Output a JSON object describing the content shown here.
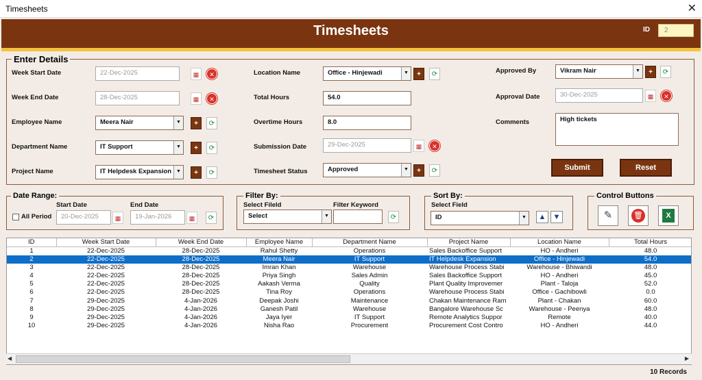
{
  "window": {
    "title": "Timesheets",
    "close": "✕"
  },
  "header": {
    "title": "Timesheets",
    "id_label": "ID",
    "id_value": "2"
  },
  "enter_details": {
    "legend": "Enter Details",
    "week_start_label": "Week Start Date",
    "week_start_value": "22-Dec-2025",
    "week_end_label": "Week End Date",
    "week_end_value": "28-Dec-2025",
    "employee_label": "Employee Name",
    "employee_value": "Meera Nair",
    "department_label": "Department Name",
    "department_value": "IT Support",
    "project_label": "Project Name",
    "project_value": "IT Helpdesk Expansion",
    "location_label": "Location Name",
    "location_value": "Office - Hinjewadi",
    "total_hours_label": "Total Hours",
    "total_hours_value": "54.0",
    "overtime_label": "Overtime Hours",
    "overtime_value": "8.0",
    "submission_label": "Submission Date",
    "submission_value": "29-Dec-2025",
    "status_label": "Timesheet Status",
    "status_value": "Approved",
    "approved_by_label": "Approved By",
    "approved_by_value": "Vikram Nair",
    "approval_date_label": "Approval Date",
    "approval_date_value": "30-Dec-2025",
    "comments_label": "Comments",
    "comments_value": "High tickets",
    "submit_label": "Submit",
    "reset_label": "Reset"
  },
  "date_range": {
    "legend": "Date Range:",
    "all_period_label": "All Period",
    "start_label": "Start Date",
    "start_value": "20-Dec-2025",
    "end_label": "End Date",
    "end_value": "19-Jan-2026"
  },
  "filter_by": {
    "legend": "Filter By:",
    "field_label": "Select Fileld",
    "field_value": "Select",
    "keyword_label": "Filter Keyword",
    "keyword_value": ""
  },
  "sort_by": {
    "legend": "Sort By:",
    "field_label": "Select Field",
    "field_value": "ID"
  },
  "control_buttons": {
    "legend": "Control Buttons"
  },
  "table": {
    "columns": [
      "ID",
      "Week Start Date",
      "Week End Date",
      "Employee Name",
      "Department Name",
      "Project Name",
      "Location Name",
      "Total Hours"
    ],
    "selected_index": 1,
    "rows": [
      [
        "1",
        "22-Dec-2025",
        "28-Dec-2025",
        "Rahul Shetty",
        "Operations",
        "Sales Backoffice Support",
        "HO - Andheri",
        "48.0"
      ],
      [
        "2",
        "22-Dec-2025",
        "28-Dec-2025",
        "Meera Nair",
        "IT Support",
        "IT Helpdesk Expansion",
        "Office - Hinjewadi",
        "54.0"
      ],
      [
        "3",
        "22-Dec-2025",
        "28-Dec-2025",
        "Imran Khan",
        "Warehouse",
        "Warehouse Process Stabi",
        "Warehouse - Bhiwandi",
        "48.0"
      ],
      [
        "4",
        "22-Dec-2025",
        "28-Dec-2025",
        "Priya Singh",
        "Sales Admin",
        "Sales Backoffice Support",
        "HO - Andheri",
        "45.0"
      ],
      [
        "5",
        "22-Dec-2025",
        "28-Dec-2025",
        "Aakash Verma",
        "Quality",
        "Plant Quality Improvemer",
        "Plant - Taloja",
        "52.0"
      ],
      [
        "6",
        "22-Dec-2025",
        "28-Dec-2025",
        "Tina Roy",
        "Operations",
        "Warehouse Process Stabi",
        "Office - Gachibowli",
        "0.0"
      ],
      [
        "7",
        "29-Dec-2025",
        "4-Jan-2026",
        "Deepak Joshi",
        "Maintenance",
        "Chakan Maintenance Ram",
        "Plant - Chakan",
        "60.0"
      ],
      [
        "8",
        "29-Dec-2025",
        "4-Jan-2026",
        "Ganesh Patil",
        "Warehouse",
        "Bangalore Warehouse Sc",
        "Warehouse - Peenya",
        "48.0"
      ],
      [
        "9",
        "29-Dec-2025",
        "4-Jan-2026",
        "Jaya Iyer",
        "IT Support",
        "Remote Analytics Suppor",
        "Remote",
        "40.0"
      ],
      [
        "10",
        "29-Dec-2025",
        "4-Jan-2026",
        "Nisha Rao",
        "Procurement",
        "Procurement Cost Contro",
        "HO - Andheri",
        "44.0"
      ]
    ]
  },
  "footer": {
    "records": "10 Records"
  },
  "icons": {
    "calendar": "calendar-icon",
    "clear": "clear-x-icon",
    "add": "plus-icon",
    "refresh": "refresh-icon",
    "edit": "pencil-icon",
    "delete": "trash-icon",
    "excel": "excel-icon"
  },
  "colors": {
    "brand": "#7a3510",
    "accent": "#f5c33c",
    "selection": "#0f6ec8",
    "danger": "#d8312a"
  }
}
